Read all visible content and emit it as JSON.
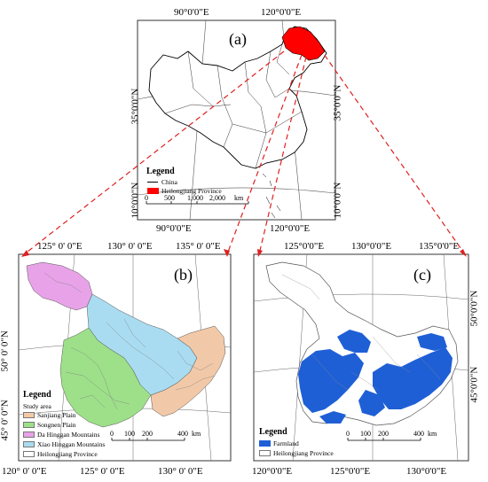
{
  "panels": {
    "a": {
      "label": "(a)",
      "top_coords": [
        "90°0'0\"E",
        "120°0'0\"E"
      ],
      "bottom_coords": [
        "90°0'0\"E",
        "120°0'0\"E"
      ],
      "left_coords": [
        "35°0'0\"N",
        "10°0'0\"N"
      ],
      "right_coords": [
        "35°0'0\"N",
        "10°0'0\"N"
      ],
      "legend": {
        "title": "Legend",
        "items": [
          {
            "label": "China",
            "color": "#000000"
          },
          {
            "label": "Heilongjiang Province",
            "color": "#ff0000"
          }
        ]
      },
      "scale": {
        "ticks": [
          "0",
          "500",
          "1,000",
          "2,000"
        ],
        "unit": "km"
      }
    },
    "b": {
      "label": "(b)",
      "top_coords": [
        "125°  0' 0\"E",
        "130°  0' 0\"E",
        "135°  0' 0\"E"
      ],
      "bottom_coords": [
        "120°  0' 0\"E",
        "125°  0' 0\"E",
        "130°  0' 0\"E"
      ],
      "left_coords": [
        "50°  0' 0\"N",
        "45°  0' 0\"N"
      ],
      "legend": {
        "title": "Legend",
        "subtitle": "Study area",
        "items": [
          {
            "label": "Sanjiang Plain",
            "color": "#f2c9a8"
          },
          {
            "label": "Songnen Plain",
            "color": "#9ee08a"
          },
          {
            "label": "Da Hinggan Mountains",
            "color": "#e8a3e8"
          },
          {
            "label": "Xiao Hinggan Mountains",
            "color": "#a9dcf0"
          },
          {
            "label": "Heilongjiang Province",
            "color": "#ffffff"
          }
        ]
      },
      "scale": {
        "ticks": [
          "0",
          "100",
          "200",
          "400"
        ],
        "unit": "km"
      }
    },
    "c": {
      "label": "(c)",
      "top_coords": [
        "125°0'0\"E",
        "130°0'0\"E",
        "135°0'0\"E"
      ],
      "bottom_coords": [
        "120°0'0\"E",
        "125°0'0\"E",
        "130°0'0\"E"
      ],
      "right_coords": [
        "50°0'0\"N",
        "45°0'0\"N"
      ],
      "legend": {
        "title": "Legend",
        "items": [
          {
            "label": "Farmland",
            "color": "#1f5fd6"
          },
          {
            "label": "Heilongjiang Province",
            "color": "#ffffff"
          }
        ]
      },
      "scale": {
        "ticks": [
          "0",
          "100",
          "200",
          "400"
        ],
        "unit": "km"
      }
    }
  },
  "colors": {
    "arrow": "#e02020",
    "frame": "#333333"
  }
}
